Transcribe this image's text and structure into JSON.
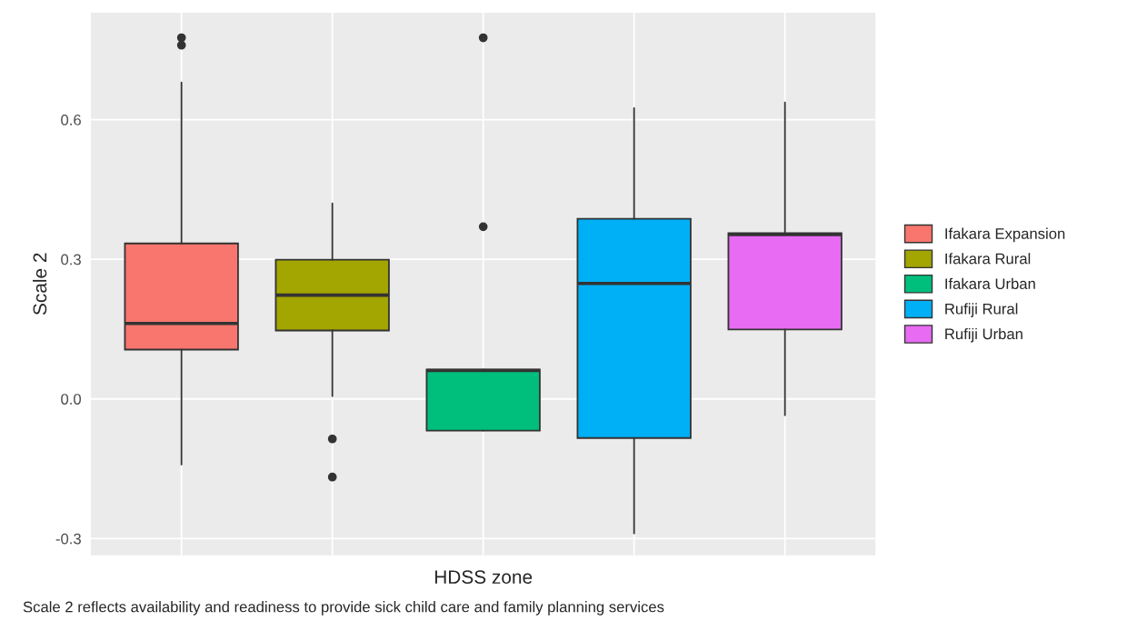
{
  "chart_data": {
    "type": "box",
    "xlabel": "HDSS zone",
    "ylabel": "Scale 2",
    "categories": [
      null,
      null,
      null,
      null,
      null
    ],
    "ylim": [
      -0.336,
      0.83
    ],
    "yticks": [
      {
        "value": -0.3,
        "label": "-0.3"
      },
      {
        "value": 0.0,
        "label": "0.0"
      },
      {
        "value": 0.3,
        "label": "0.3"
      },
      {
        "value": 0.6,
        "label": "0.6"
      }
    ],
    "grid": true,
    "legend": "right",
    "series": [
      {
        "name": "Ifakara Expansion",
        "color": "#f8766d",
        "boxes": [
          {
            "low": -0.141,
            "q1": 0.106,
            "median": 0.162,
            "q3": 0.334,
            "high": 0.68,
            "outliers": [
              0.776,
              0.76
            ]
          },
          null,
          null,
          null,
          null
        ]
      },
      {
        "name": "Ifakara Rural",
        "color": "#a3a500",
        "boxes": [
          null,
          {
            "low": 0.006,
            "q1": 0.147,
            "median": 0.223,
            "q3": 0.299,
            "high": 0.42,
            "outliers": [
              -0.086,
              -0.168
            ]
          },
          null,
          null,
          null
        ]
      },
      {
        "name": "Ifakara Urban",
        "color": "#00bf7d",
        "boxes": [
          null,
          null,
          {
            "low": -0.068,
            "q1": -0.068,
            "median": 0.061,
            "q3": 0.063,
            "high": 0.063,
            "outliers": [
              0.776,
              0.37
            ]
          },
          null,
          null
        ]
      },
      {
        "name": "Rufiji Rural",
        "color": "#00b0f6",
        "boxes": [
          null,
          null,
          null,
          {
            "low": -0.289,
            "q1": -0.084,
            "median": 0.248,
            "q3": 0.387,
            "high": 0.625
          },
          null
        ]
      },
      {
        "name": "Rufiji Urban",
        "color": "#e76bf3",
        "boxes": [
          null,
          null,
          null,
          null,
          {
            "low": -0.035,
            "q1": 0.149,
            "median": 0.353,
            "q3": 0.356,
            "high": 0.637
          }
        ]
      }
    ],
    "annotations": [
      "Scale 2 reflects availability and readiness to provide sick child care and family planning services"
    ]
  }
}
